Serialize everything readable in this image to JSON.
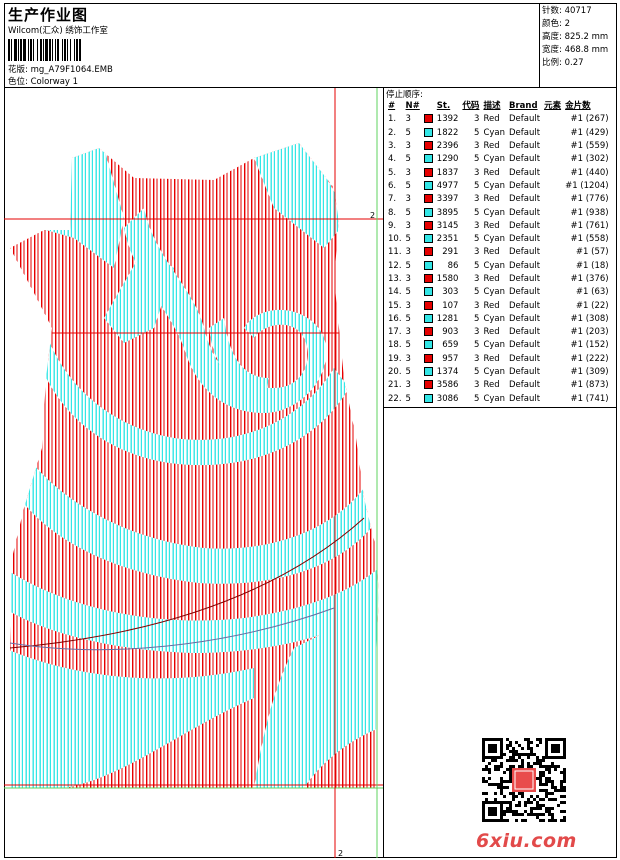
{
  "header": {
    "title": "生产作业图",
    "company": "Wilcom(汇众) 绣饰工作室",
    "file_label": "花版:",
    "file_name": "mg_A79F1064.EMB",
    "colorway_label": "色位:",
    "colorway_name": "Colorway 1"
  },
  "stats": [
    {
      "label": "针数:",
      "value": "40717"
    },
    {
      "label": "颜色:",
      "value": "2"
    },
    {
      "label": "高度:",
      "value": "825.2 mm"
    },
    {
      "label": "宽度:",
      "value": "468.8 mm"
    },
    {
      "label": "比例:",
      "value": "0.27"
    }
  ],
  "design": {
    "marker_right": "2",
    "marker_bottom": "2"
  },
  "sequence": {
    "title": "停止顺序:",
    "headers": [
      "#",
      "N#",
      "St.",
      "代码",
      "描述",
      "Brand",
      "元素",
      "金片数"
    ],
    "rows": [
      {
        "num": "1.",
        "n": "3",
        "color": "#e60000",
        "st": "1392",
        "code": "3",
        "desc": "Red",
        "brand": "Default",
        "sequin": "#1 (267)"
      },
      {
        "num": "2.",
        "n": "5",
        "color": "#33e6e6",
        "st": "1822",
        "code": "5",
        "desc": "Cyan",
        "brand": "Default",
        "sequin": "#1 (429)"
      },
      {
        "num": "3.",
        "n": "3",
        "color": "#e60000",
        "st": "2396",
        "code": "3",
        "desc": "Red",
        "brand": "Default",
        "sequin": "#1 (559)"
      },
      {
        "num": "4.",
        "n": "5",
        "color": "#33e6e6",
        "st": "1290",
        "code": "5",
        "desc": "Cyan",
        "brand": "Default",
        "sequin": "#1 (302)"
      },
      {
        "num": "5.",
        "n": "3",
        "color": "#e60000",
        "st": "1837",
        "code": "3",
        "desc": "Red",
        "brand": "Default",
        "sequin": "#1 (440)"
      },
      {
        "num": "6.",
        "n": "5",
        "color": "#33e6e6",
        "st": "4977",
        "code": "5",
        "desc": "Cyan",
        "brand": "Default",
        "sequin": "#1 (1204)"
      },
      {
        "num": "7.",
        "n": "3",
        "color": "#e60000",
        "st": "3397",
        "code": "3",
        "desc": "Red",
        "brand": "Default",
        "sequin": "#1 (776)"
      },
      {
        "num": "8.",
        "n": "5",
        "color": "#33e6e6",
        "st": "3895",
        "code": "5",
        "desc": "Cyan",
        "brand": "Default",
        "sequin": "#1 (938)"
      },
      {
        "num": "9.",
        "n": "3",
        "color": "#e60000",
        "st": "3145",
        "code": "3",
        "desc": "Red",
        "brand": "Default",
        "sequin": "#1 (761)"
      },
      {
        "num": "10.",
        "n": "5",
        "color": "#33e6e6",
        "st": "2351",
        "code": "5",
        "desc": "Cyan",
        "brand": "Default",
        "sequin": "#1 (558)"
      },
      {
        "num": "11.",
        "n": "3",
        "color": "#e60000",
        "st": "291",
        "code": "3",
        "desc": "Red",
        "brand": "Default",
        "sequin": "#1 (57)"
      },
      {
        "num": "12.",
        "n": "5",
        "color": "#33e6e6",
        "st": "86",
        "code": "5",
        "desc": "Cyan",
        "brand": "Default",
        "sequin": "#1 (18)"
      },
      {
        "num": "13.",
        "n": "3",
        "color": "#e60000",
        "st": "1580",
        "code": "3",
        "desc": "Red",
        "brand": "Default",
        "sequin": "#1 (376)"
      },
      {
        "num": "14.",
        "n": "5",
        "color": "#33e6e6",
        "st": "303",
        "code": "5",
        "desc": "Cyan",
        "brand": "Default",
        "sequin": "#1 (63)"
      },
      {
        "num": "15.",
        "n": "3",
        "color": "#e60000",
        "st": "107",
        "code": "3",
        "desc": "Red",
        "brand": "Default",
        "sequin": "#1 (22)"
      },
      {
        "num": "16.",
        "n": "5",
        "color": "#33e6e6",
        "st": "1281",
        "code": "5",
        "desc": "Cyan",
        "brand": "Default",
        "sequin": "#1 (308)"
      },
      {
        "num": "17.",
        "n": "3",
        "color": "#e60000",
        "st": "903",
        "code": "3",
        "desc": "Red",
        "brand": "Default",
        "sequin": "#1 (203)"
      },
      {
        "num": "18.",
        "n": "5",
        "color": "#33e6e6",
        "st": "659",
        "code": "5",
        "desc": "Cyan",
        "brand": "Default",
        "sequin": "#1 (152)"
      },
      {
        "num": "19.",
        "n": "3",
        "color": "#e60000",
        "st": "957",
        "code": "3",
        "desc": "Red",
        "brand": "Default",
        "sequin": "#1 (222)"
      },
      {
        "num": "20.",
        "n": "5",
        "color": "#33e6e6",
        "st": "1374",
        "code": "5",
        "desc": "Cyan",
        "brand": "Default",
        "sequin": "#1 (309)"
      },
      {
        "num": "21.",
        "n": "3",
        "color": "#e60000",
        "st": "3586",
        "code": "3",
        "desc": "Red",
        "brand": "Default",
        "sequin": "#1 (873)"
      },
      {
        "num": "22.",
        "n": "5",
        "color": "#33e6e6",
        "st": "3086",
        "code": "5",
        "desc": "Cyan",
        "brand": "Default",
        "sequin": "#1 (741)"
      }
    ]
  },
  "watermark": {
    "logo_text": "6xiu.com"
  },
  "colors": {
    "red": "#e60000",
    "cyan": "#33e6e6",
    "guide_green": "#5fd35f"
  }
}
